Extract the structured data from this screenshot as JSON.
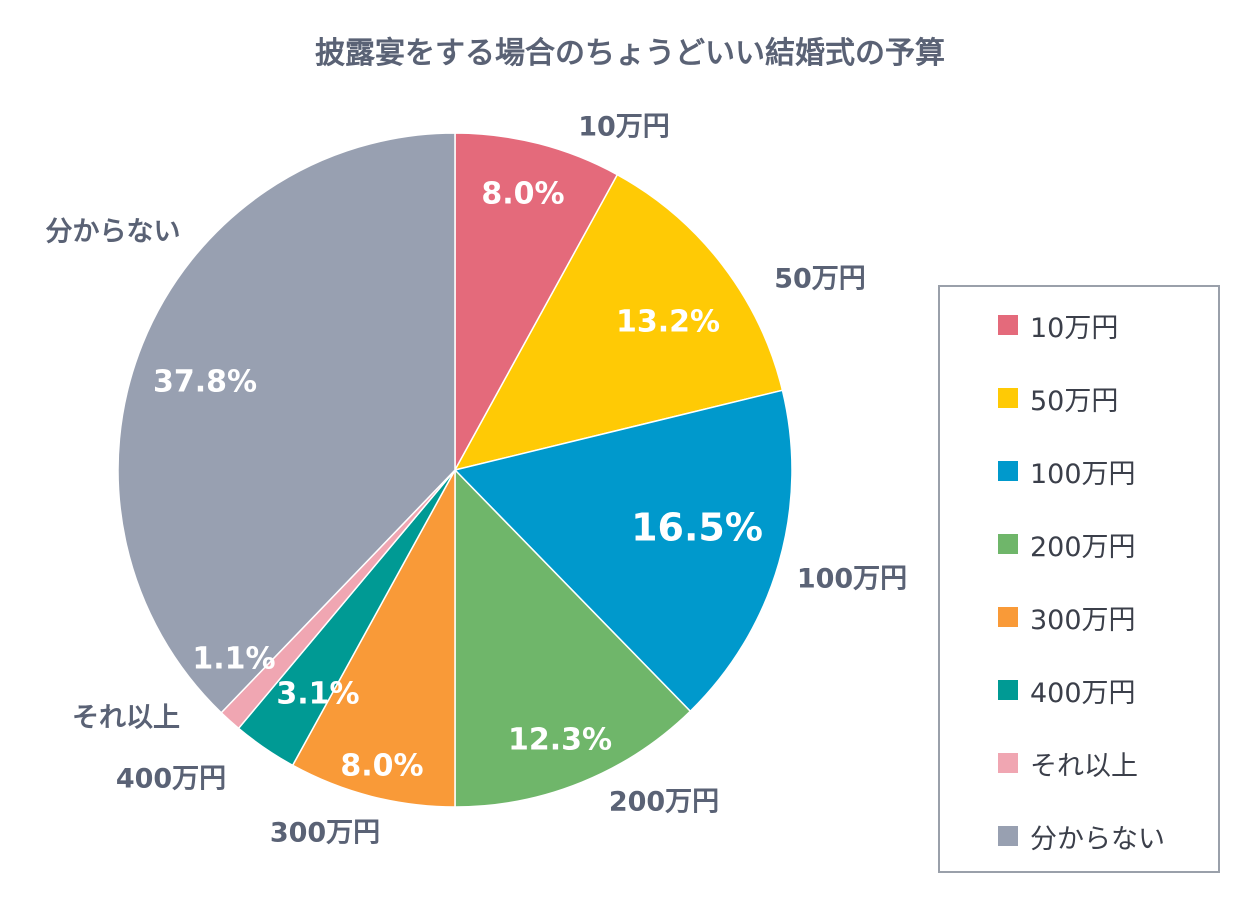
{
  "title": "披露宴をする場合のちょうどいい結婚式の予算",
  "chart_data": {
    "type": "pie",
    "title": "披露宴をする場合のちょうどいい結婚式の予算",
    "start_angle_deg": 0,
    "direction": "clockwise",
    "legend_position": "right",
    "categories": [
      "10万円",
      "50万円",
      "100万円",
      "200万円",
      "300万円",
      "400万円",
      "それ以上",
      "分からない"
    ],
    "values": [
      8.0,
      13.2,
      16.5,
      12.3,
      8.0,
      3.1,
      1.1,
      37.8
    ],
    "value_labels": [
      "8.0%",
      "13.2%",
      "16.5%",
      "12.3%",
      "8.0%",
      "3.1%",
      "1.1%",
      "37.8%"
    ],
    "colors": [
      "#e46a7b",
      "#ffca05",
      "#0099cc",
      "#6fb66a",
      "#f99a38",
      "#009a94",
      "#f0a6b2",
      "#98a0b1"
    ]
  }
}
